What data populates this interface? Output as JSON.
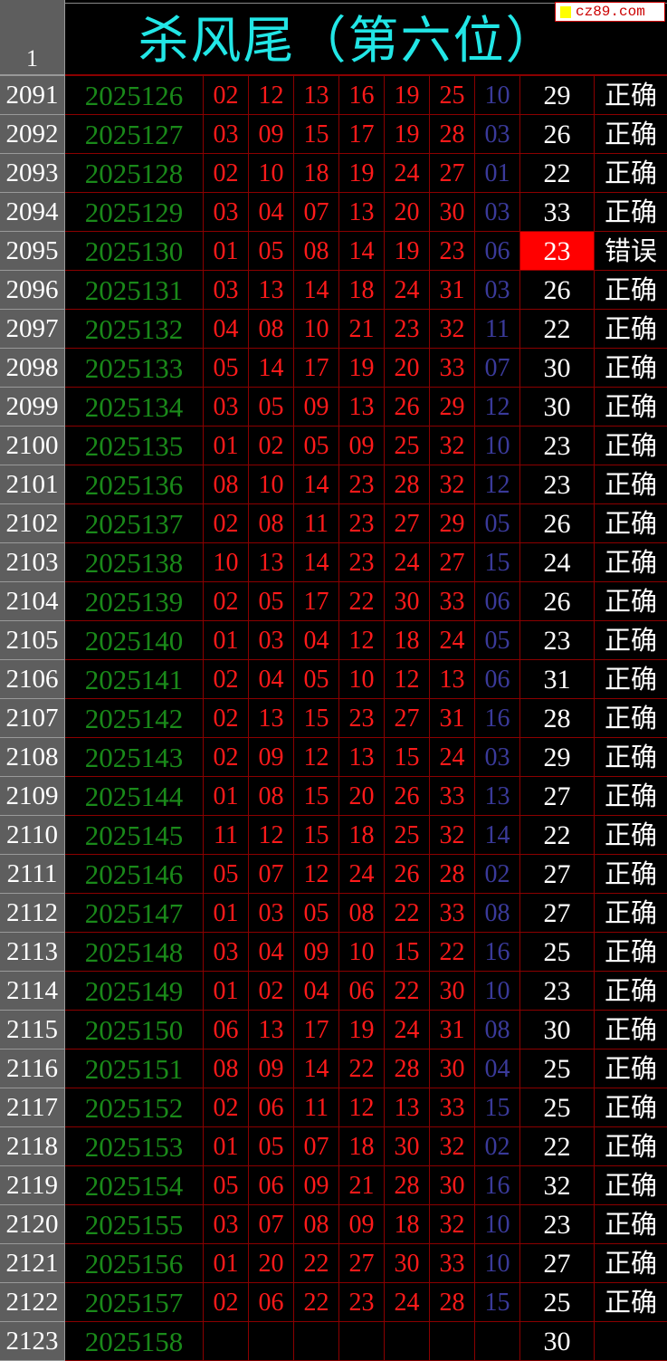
{
  "header": {
    "row_number": "1",
    "title": "杀风尾（第六位）",
    "watermark": "cz89.com"
  },
  "colors": {
    "period": "#1a8a1a",
    "red_numbers": "#ff1a1a",
    "blue_number": "#3a3a9a",
    "title": "#22e6e6",
    "error_highlight": "#ff0000"
  },
  "rows": [
    {
      "row": "2091",
      "period": "2025126",
      "reds": [
        "02",
        "12",
        "13",
        "16",
        "19",
        "25"
      ],
      "blue": "10",
      "value": "29",
      "result": "正确"
    },
    {
      "row": "2092",
      "period": "2025127",
      "reds": [
        "03",
        "09",
        "15",
        "17",
        "19",
        "28"
      ],
      "blue": "03",
      "value": "26",
      "result": "正确"
    },
    {
      "row": "2093",
      "period": "2025128",
      "reds": [
        "02",
        "10",
        "18",
        "19",
        "24",
        "27"
      ],
      "blue": "01",
      "value": "22",
      "result": "正确"
    },
    {
      "row": "2094",
      "period": "2025129",
      "reds": [
        "03",
        "04",
        "07",
        "13",
        "20",
        "30"
      ],
      "blue": "03",
      "value": "33",
      "result": "正确"
    },
    {
      "row": "2095",
      "period": "2025130",
      "reds": [
        "01",
        "05",
        "08",
        "14",
        "19",
        "23"
      ],
      "blue": "06",
      "value": "23",
      "result": "错误",
      "error": true
    },
    {
      "row": "2096",
      "period": "2025131",
      "reds": [
        "03",
        "13",
        "14",
        "18",
        "24",
        "31"
      ],
      "blue": "03",
      "value": "26",
      "result": "正确"
    },
    {
      "row": "2097",
      "period": "2025132",
      "reds": [
        "04",
        "08",
        "10",
        "21",
        "23",
        "32"
      ],
      "blue": "11",
      "value": "22",
      "result": "正确"
    },
    {
      "row": "2098",
      "period": "2025133",
      "reds": [
        "05",
        "14",
        "17",
        "19",
        "20",
        "33"
      ],
      "blue": "07",
      "value": "30",
      "result": "正确"
    },
    {
      "row": "2099",
      "period": "2025134",
      "reds": [
        "03",
        "05",
        "09",
        "13",
        "26",
        "29"
      ],
      "blue": "12",
      "value": "30",
      "result": "正确"
    },
    {
      "row": "2100",
      "period": "2025135",
      "reds": [
        "01",
        "02",
        "05",
        "09",
        "25",
        "32"
      ],
      "blue": "10",
      "value": "23",
      "result": "正确"
    },
    {
      "row": "2101",
      "period": "2025136",
      "reds": [
        "08",
        "10",
        "14",
        "23",
        "28",
        "32"
      ],
      "blue": "12",
      "value": "23",
      "result": "正确"
    },
    {
      "row": "2102",
      "period": "2025137",
      "reds": [
        "02",
        "08",
        "11",
        "23",
        "27",
        "29"
      ],
      "blue": "05",
      "value": "26",
      "result": "正确"
    },
    {
      "row": "2103",
      "period": "2025138",
      "reds": [
        "10",
        "13",
        "14",
        "23",
        "24",
        "27"
      ],
      "blue": "15",
      "value": "24",
      "result": "正确"
    },
    {
      "row": "2104",
      "period": "2025139",
      "reds": [
        "02",
        "05",
        "17",
        "22",
        "30",
        "33"
      ],
      "blue": "06",
      "value": "26",
      "result": "正确"
    },
    {
      "row": "2105",
      "period": "2025140",
      "reds": [
        "01",
        "03",
        "04",
        "12",
        "18",
        "24"
      ],
      "blue": "05",
      "value": "23",
      "result": "正确"
    },
    {
      "row": "2106",
      "period": "2025141",
      "reds": [
        "02",
        "04",
        "05",
        "10",
        "12",
        "13"
      ],
      "blue": "06",
      "value": "31",
      "result": "正确"
    },
    {
      "row": "2107",
      "period": "2025142",
      "reds": [
        "02",
        "13",
        "15",
        "23",
        "27",
        "31"
      ],
      "blue": "16",
      "value": "28",
      "result": "正确"
    },
    {
      "row": "2108",
      "period": "2025143",
      "reds": [
        "02",
        "09",
        "12",
        "13",
        "15",
        "24"
      ],
      "blue": "03",
      "value": "29",
      "result": "正确"
    },
    {
      "row": "2109",
      "period": "2025144",
      "reds": [
        "01",
        "08",
        "15",
        "20",
        "26",
        "33"
      ],
      "blue": "13",
      "value": "27",
      "result": "正确"
    },
    {
      "row": "2110",
      "period": "2025145",
      "reds": [
        "11",
        "12",
        "15",
        "18",
        "25",
        "32"
      ],
      "blue": "14",
      "value": "22",
      "result": "正确"
    },
    {
      "row": "2111",
      "period": "2025146",
      "reds": [
        "05",
        "07",
        "12",
        "24",
        "26",
        "28"
      ],
      "blue": "02",
      "value": "27",
      "result": "正确"
    },
    {
      "row": "2112",
      "period": "2025147",
      "reds": [
        "01",
        "03",
        "05",
        "08",
        "22",
        "33"
      ],
      "blue": "08",
      "value": "27",
      "result": "正确"
    },
    {
      "row": "2113",
      "period": "2025148",
      "reds": [
        "03",
        "04",
        "09",
        "10",
        "15",
        "22"
      ],
      "blue": "16",
      "value": "25",
      "result": "正确"
    },
    {
      "row": "2114",
      "period": "2025149",
      "reds": [
        "01",
        "02",
        "04",
        "06",
        "22",
        "30"
      ],
      "blue": "10",
      "value": "23",
      "result": "正确"
    },
    {
      "row": "2115",
      "period": "2025150",
      "reds": [
        "06",
        "13",
        "17",
        "19",
        "24",
        "31"
      ],
      "blue": "08",
      "value": "30",
      "result": "正确"
    },
    {
      "row": "2116",
      "period": "2025151",
      "reds": [
        "08",
        "09",
        "14",
        "22",
        "28",
        "30"
      ],
      "blue": "04",
      "value": "25",
      "result": "正确"
    },
    {
      "row": "2117",
      "period": "2025152",
      "reds": [
        "02",
        "06",
        "11",
        "12",
        "13",
        "33"
      ],
      "blue": "15",
      "value": "25",
      "result": "正确"
    },
    {
      "row": "2118",
      "period": "2025153",
      "reds": [
        "01",
        "05",
        "07",
        "18",
        "30",
        "32"
      ],
      "blue": "02",
      "value": "22",
      "result": "正确"
    },
    {
      "row": "2119",
      "period": "2025154",
      "reds": [
        "05",
        "06",
        "09",
        "21",
        "28",
        "30"
      ],
      "blue": "16",
      "value": "32",
      "result": "正确"
    },
    {
      "row": "2120",
      "period": "2025155",
      "reds": [
        "03",
        "07",
        "08",
        "09",
        "18",
        "32"
      ],
      "blue": "10",
      "value": "23",
      "result": "正确"
    },
    {
      "row": "2121",
      "period": "2025156",
      "reds": [
        "01",
        "20",
        "22",
        "27",
        "30",
        "33"
      ],
      "blue": "10",
      "value": "27",
      "result": "正确"
    },
    {
      "row": "2122",
      "period": "2025157",
      "reds": [
        "02",
        "06",
        "22",
        "23",
        "24",
        "28"
      ],
      "blue": "15",
      "value": "25",
      "result": "正确"
    },
    {
      "row": "2123",
      "period": "2025158",
      "reds": [
        "",
        "",
        "",
        "",
        "",
        ""
      ],
      "blue": "",
      "value": "30",
      "result": ""
    }
  ]
}
